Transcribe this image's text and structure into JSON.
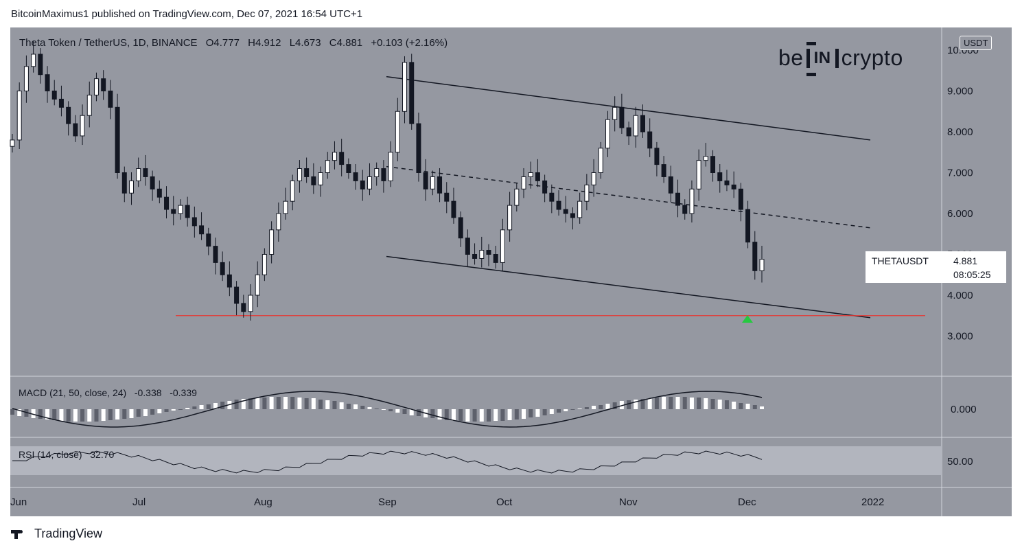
{
  "publish_line": "BitcoinMaximus1 published on TradingView.com, Dec 07, 2021 16:54 UTC+1",
  "footer_brand": "TradingView",
  "legend": {
    "symbol": "Theta Token / TetherUS, 1D, BINANCE",
    "o_label": "O",
    "o": "4.777",
    "h_label": "H",
    "h": "4.912",
    "l_label": "L",
    "l": "4.673",
    "c_label": "C",
    "c": "4.881",
    "change": "+0.103 (+2.16%)"
  },
  "currency": "USDT",
  "logo": {
    "left": "be",
    "mid": "IN",
    "right": "crypto"
  },
  "ticker": {
    "symbol": "THETAUSDT",
    "price": "4.881",
    "countdown": "08:05:25"
  },
  "macd": {
    "label": "MACD (21, 50, close, 24)",
    "v1": "-0.338",
    "v2": "-0.339"
  },
  "rsi": {
    "label": "RSI (14, close)",
    "value": "32.70"
  },
  "colors": {
    "panel": "#9598a1",
    "support": "#e53935",
    "arrow": "#26c940",
    "line": "#131722"
  },
  "chart_data": {
    "type": "candlestick",
    "title": "Theta Token / TetherUS, 1D, BINANCE",
    "y_ticks": [
      "3.000",
      "4.000",
      "5.000",
      "6.000",
      "7.000",
      "8.000",
      "9.000",
      "10.000"
    ],
    "x_ticks": [
      "Jun",
      "Jul",
      "Aug",
      "Sep",
      "Oct",
      "Nov",
      "Dec",
      "2022"
    ],
    "ylim": [
      2.0,
      10.2
    ],
    "closes": [
      7.8,
      9.0,
      9.6,
      9.9,
      9.4,
      9.0,
      8.8,
      8.6,
      8.2,
      7.9,
      8.4,
      8.9,
      9.3,
      9.0,
      8.6,
      7.0,
      6.5,
      6.8,
      7.1,
      6.9,
      6.6,
      6.4,
      6.1,
      6.0,
      6.2,
      5.9,
      5.7,
      5.5,
      5.2,
      4.8,
      4.5,
      4.2,
      3.8,
      3.6,
      4.0,
      4.5,
      5.0,
      5.6,
      6.0,
      6.3,
      6.8,
      7.1,
      6.9,
      6.7,
      7.0,
      7.3,
      7.5,
      7.2,
      7.0,
      6.8,
      6.6,
      6.9,
      7.1,
      6.8,
      7.5,
      8.5,
      9.7,
      8.2,
      7.0,
      6.6,
      6.9,
      6.5,
      6.3,
      5.9,
      5.4,
      5.0,
      4.9,
      5.1,
      5.0,
      4.8,
      5.6,
      6.2,
      6.6,
      6.9,
      7.0,
      6.8,
      6.5,
      6.3,
      6.1,
      6.0,
      5.9,
      6.3,
      6.7,
      7.0,
      7.6,
      8.3,
      8.6,
      8.1,
      7.9,
      8.4,
      8.0,
      7.6,
      7.2,
      6.9,
      6.5,
      6.2,
      6.0,
      6.6,
      7.3,
      7.4,
      7.0,
      6.8,
      6.7,
      6.6,
      6.1,
      5.3,
      4.6,
      4.88
    ],
    "support_level": 3.5
  }
}
